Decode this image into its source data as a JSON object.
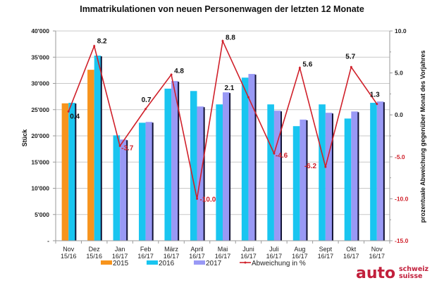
{
  "chart_data": {
    "type": "bar",
    "title": "Immatrikulationen von neuen Personenwagen der letzten 12 Monate",
    "ylabel": "Stück",
    "y2label": "prozentuale Abweichung gegenüber Monat des Vorjahres",
    "xlabel": "",
    "ylim": [
      0,
      40000
    ],
    "y2lim": [
      -15,
      10
    ],
    "grid": true,
    "legend_position": "bottom",
    "y_ticks": [
      "-",
      "5'000",
      "10'000",
      "15'000",
      "20'000",
      "25'000",
      "30'000",
      "35'000",
      "40'000"
    ],
    "y2_ticks": [
      "-15.0",
      "-10.0",
      "-5.0",
      "0.0",
      "5.0",
      "10.0"
    ],
    "categories": [
      [
        "Nov",
        "15/16"
      ],
      [
        "Dez",
        "15/16"
      ],
      [
        "Jan",
        "16/17"
      ],
      [
        "Feb",
        "16/17"
      ],
      [
        "März",
        "16/17"
      ],
      [
        "April",
        "16/17"
      ],
      [
        "Mai",
        "16/17"
      ],
      [
        "Juni",
        "16/17"
      ],
      [
        "Juli",
        "16/17"
      ],
      [
        "Aug",
        "16/17"
      ],
      [
        "Sept",
        "16/17"
      ],
      [
        "Okt",
        "16/17"
      ],
      [
        "Nov",
        "16/17"
      ]
    ],
    "series": [
      {
        "name": "2015",
        "type": "bar",
        "color": "#f7941d",
        "values": [
          26200,
          32600,
          null,
          null,
          null,
          null,
          null,
          null,
          null,
          null,
          null,
          null,
          null
        ]
      },
      {
        "name": "2016",
        "type": "bar",
        "color": "#19c5f0",
        "values": [
          26300,
          35300,
          20100,
          22500,
          29000,
          28550,
          26000,
          31100,
          26000,
          21850,
          26000,
          23300,
          26300
        ]
      },
      {
        "name": "2017",
        "type": "bar",
        "color": "#9999f5",
        "values": [
          null,
          null,
          19300,
          22650,
          30450,
          25600,
          28300,
          31800,
          24800,
          23100,
          24400,
          24650,
          26550
        ]
      },
      {
        "name": "Abweichung in %",
        "type": "line",
        "axis": "right",
        "color": "#d0202a",
        "values": [
          0.4,
          8.2,
          -3.7,
          0.7,
          4.8,
          -10.0,
          8.8,
          2.1,
          -4.6,
          5.6,
          -6.2,
          5.7,
          1.3
        ],
        "labels": [
          "0.4",
          "8.2",
          "-3.7",
          "0.7",
          "4.8",
          "-10.0",
          "8.8",
          "2.1",
          "-4.6",
          "5.6",
          "-6.2",
          "5.7",
          "1.3"
        ]
      }
    ]
  },
  "logo": {
    "main": "auto",
    "line1": "schweiz",
    "line2": "suisse"
  }
}
